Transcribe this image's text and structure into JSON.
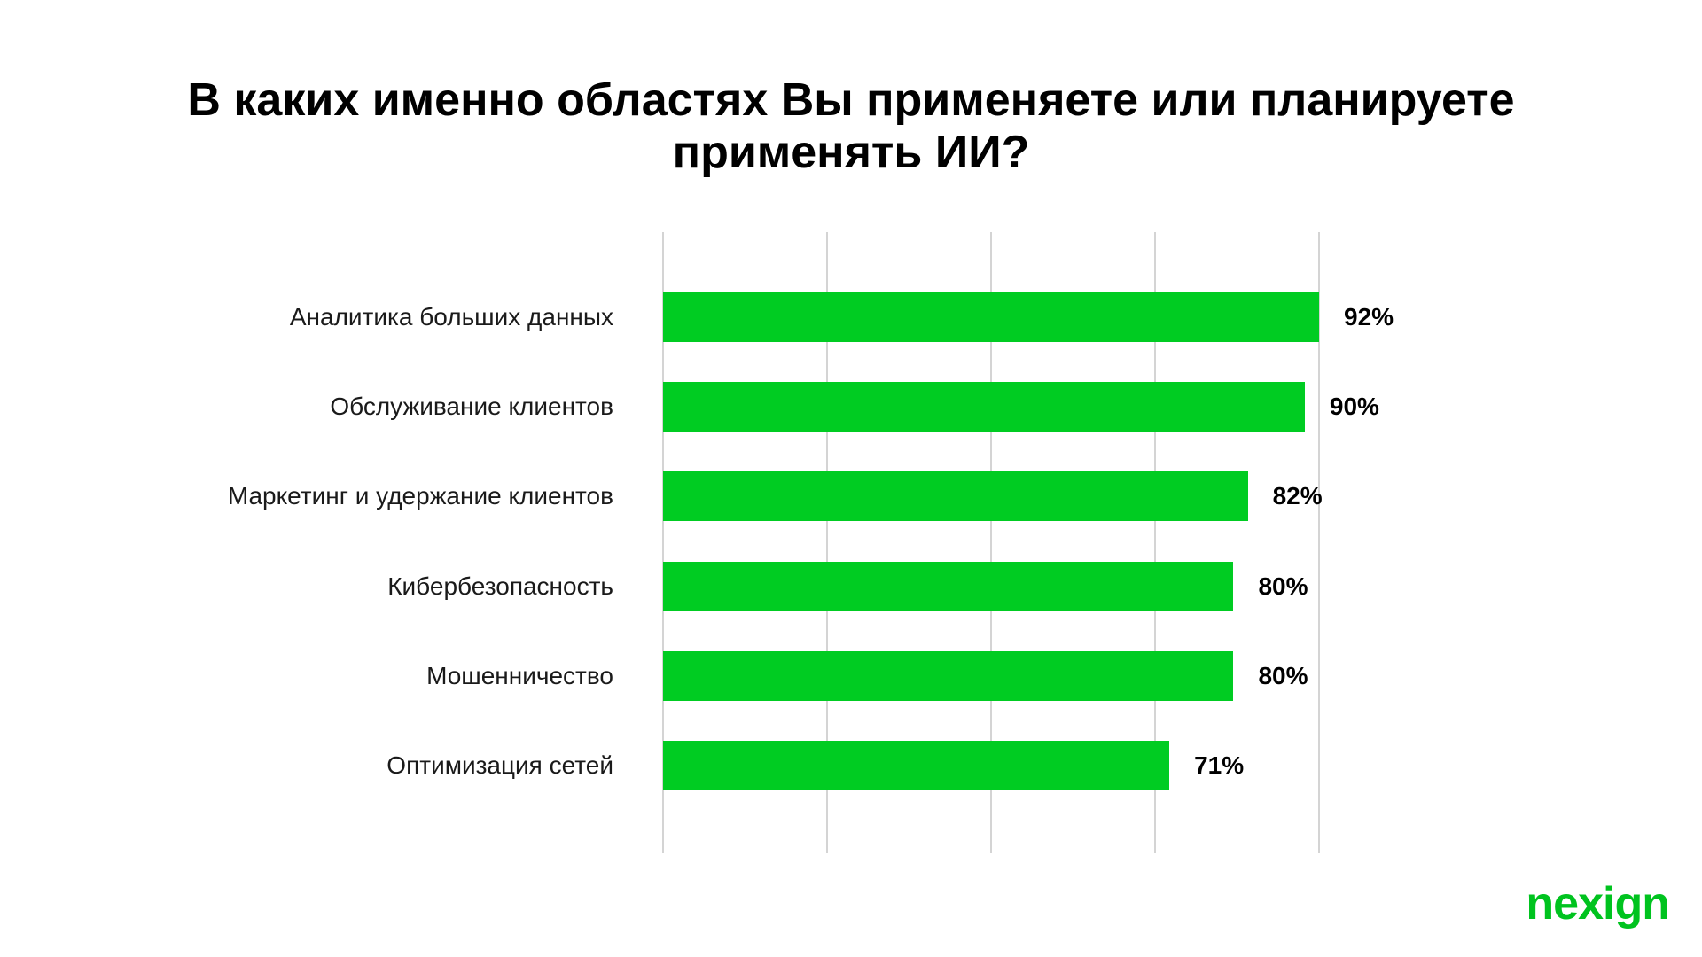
{
  "colors": {
    "bar": "#00CC22",
    "grid": "#D4D4D4",
    "text": "#000000",
    "logo": "#00C31F"
  },
  "logo": {
    "text": "nexign"
  },
  "chart_data": {
    "type": "bar",
    "orientation": "horizontal",
    "title": "В каких именно областях Вы применяете или планируете применять ИИ?",
    "xlabel": "",
    "ylabel": "",
    "categories": [
      "Аналитика больших данных",
      "Обслуживание клиентов",
      "Маркетинг и удержание клиентов",
      "Кибербезопасность",
      "Мошенничество",
      "Оптимизация сетей"
    ],
    "values": [
      92,
      90,
      82,
      80,
      80,
      71
    ],
    "value_labels": [
      "92%",
      "90%",
      "82%",
      "80%",
      "80%",
      "71%"
    ],
    "xlim": [
      0,
      92
    ],
    "grid": true,
    "gridlines": [
      0,
      23,
      46,
      69,
      92
    ],
    "legend": "none"
  }
}
